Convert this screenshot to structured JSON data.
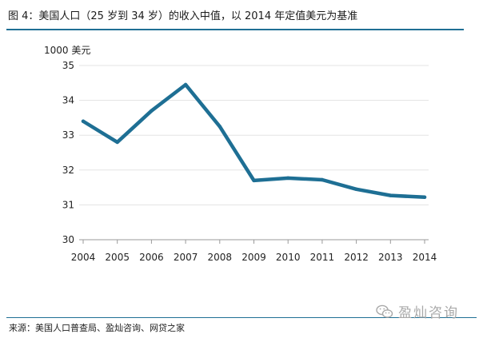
{
  "header": {
    "title": "图 4：美国人口（25 岁到 34 岁）的收入中值，以 2014 年定值美元为基准"
  },
  "chart_data": {
    "type": "line",
    "ylabel": "1000 美元",
    "categories": [
      "2004",
      "2005",
      "2006",
      "2007",
      "2008",
      "2009",
      "2010",
      "2011",
      "2012",
      "2013",
      "2014"
    ],
    "series": [
      {
        "values": [
          33.4,
          32.8,
          33.7,
          34.45,
          33.25,
          31.7,
          31.77,
          31.72,
          31.45,
          31.27,
          31.22
        ]
      }
    ],
    "ylim": [
      30,
      35
    ],
    "yticks": [
      "30",
      "31",
      "32",
      "33",
      "34",
      "35"
    ],
    "grid": true,
    "line_color": "#1e6f94"
  },
  "footer": {
    "source": "来源：美国人口普查局、盈灿咨询、网贷之家",
    "watermark": "盈灿咨询",
    "watermark_icon": "wechat-icon"
  }
}
